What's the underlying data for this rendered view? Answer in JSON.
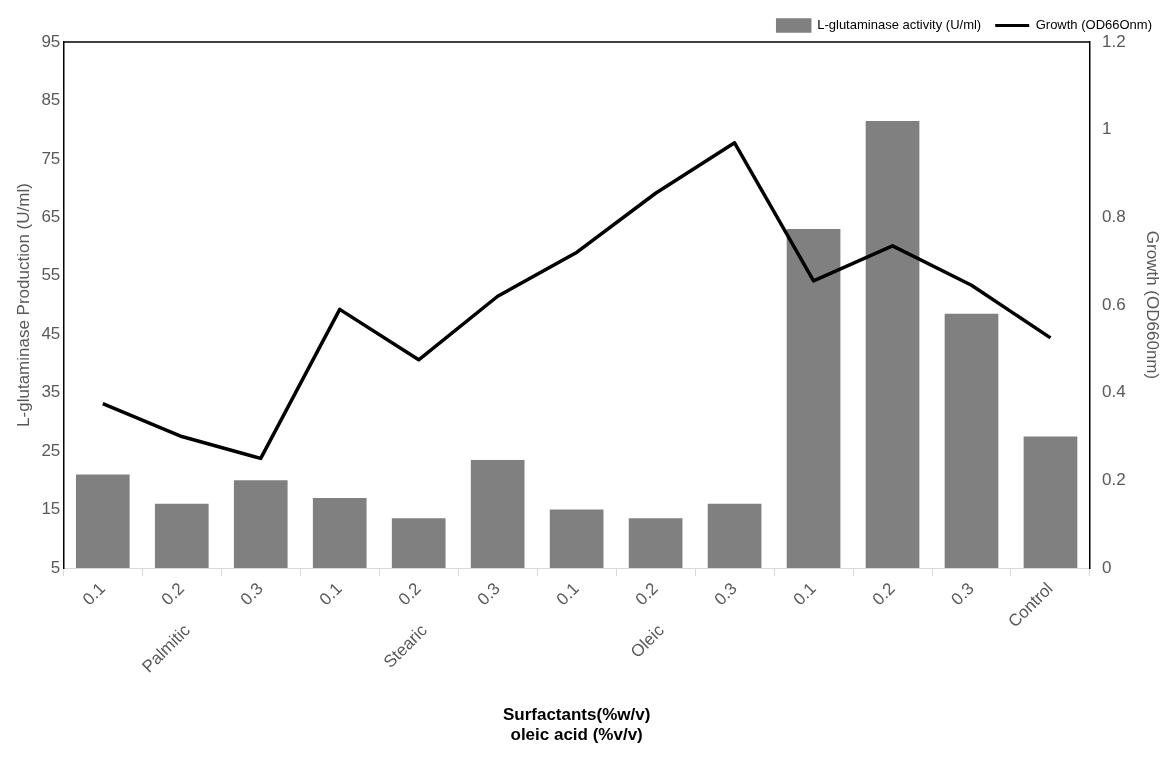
{
  "chart_data": {
    "type": "bar",
    "xlabel": "Surfactants(%w/v)\noleic acid (%v/v)",
    "ylabel": "L-glutaminase Production (U/ml)",
    "y2label": "Growth (OD660nm)",
    "categories": [
      "0.1",
      "0.2",
      "0.3",
      "0.1",
      "0.2",
      "0.3",
      "0.1",
      "0.2",
      "0.3",
      "0.1",
      "0.2",
      "0.3",
      "Control"
    ],
    "series": [
      {
        "name": "L-glutaminase activity (U/ml)",
        "color": "#808080",
        "values": [
          21,
          16,
          20,
          17,
          13.5,
          23.5,
          15,
          13.5,
          16,
          63,
          81.5,
          48.5,
          27.5
        ]
      },
      {
        "name": "Growth (OD66Onm)",
        "type": "line",
        "axis": "y2",
        "color": "#000000",
        "values": [
          0.375,
          0.3,
          0.25,
          0.59,
          0.475,
          0.62,
          0.72,
          0.855,
          0.97,
          0.655,
          0.735,
          0.645,
          0.525
        ]
      }
    ],
    "annotations": [
      "Palmitic",
      "Stearic",
      "Oleic"
    ],
    "ylim": [
      5,
      95
    ],
    "yticks": [
      5,
      15,
      25,
      35,
      45,
      55,
      65,
      75,
      85,
      95
    ],
    "y2lim": [
      0,
      1.2
    ],
    "y2ticks": [
      0,
      0.2,
      0.4,
      0.6,
      0.8,
      1,
      1.2
    ],
    "legend": "top right",
    "grid": false,
    "marker": "none",
    "line_style": "solid"
  }
}
